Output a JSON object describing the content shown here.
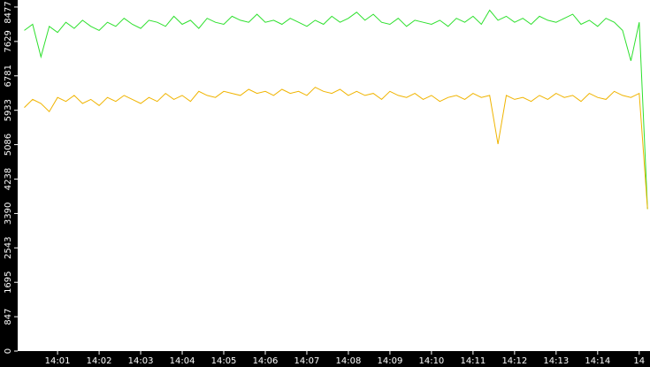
{
  "chart_data": {
    "type": "line",
    "x": [
      0.2,
      0.4,
      0.6,
      0.8,
      1.0,
      1.2,
      1.4,
      1.6,
      1.8,
      2.0,
      2.2,
      2.4,
      2.6,
      2.8,
      3.0,
      3.2,
      3.4,
      3.6,
      3.8,
      4.0,
      4.2,
      4.4,
      4.6,
      4.8,
      5.0,
      5.2,
      5.4,
      5.6,
      5.8,
      6.0,
      6.2,
      6.4,
      6.6,
      6.8,
      7.0,
      7.2,
      7.4,
      7.6,
      7.8,
      8.0,
      8.2,
      8.4,
      8.6,
      8.8,
      9.0,
      9.2,
      9.4,
      9.6,
      9.8,
      10.0,
      10.2,
      10.4,
      10.6,
      10.8,
      11.0,
      11.2,
      11.4,
      11.6,
      11.8,
      12.0,
      12.2,
      12.4,
      12.6,
      12.8,
      13.0,
      13.2,
      13.4,
      13.6,
      13.8,
      14.0,
      14.2,
      14.4,
      14.6,
      14.8,
      15.0,
      15.2
    ],
    "series": [
      {
        "color": "#2de02d",
        "values": [
          7900,
          8050,
          7250,
          8000,
          7850,
          8100,
          7950,
          8150,
          8000,
          7900,
          8100,
          8000,
          8200,
          8050,
          7950,
          8150,
          8100,
          8000,
          8250,
          8050,
          8150,
          7950,
          8200,
          8100,
          8050,
          8250,
          8150,
          8100,
          8300,
          8100,
          8150,
          8050,
          8200,
          8100,
          8000,
          8150,
          8050,
          8250,
          8100,
          8200,
          8350,
          8150,
          8300,
          8100,
          8050,
          8200,
          8000,
          8150,
          8100,
          8050,
          8150,
          8000,
          8200,
          8100,
          8250,
          8050,
          8400,
          8150,
          8250,
          8100,
          8200,
          8050,
          8250,
          8150,
          8100,
          8200,
          8300,
          8050,
          8150,
          8000,
          8200,
          8100,
          7900,
          7150,
          8100,
          3500
        ]
      },
      {
        "color": "#f0b400",
        "values": [
          6000,
          6200,
          6100,
          5900,
          6250,
          6150,
          6300,
          6100,
          6200,
          6050,
          6250,
          6150,
          6300,
          6200,
          6100,
          6250,
          6150,
          6350,
          6200,
          6300,
          6150,
          6400,
          6300,
          6250,
          6400,
          6350,
          6300,
          6450,
          6350,
          6400,
          6300,
          6450,
          6350,
          6400,
          6300,
          6500,
          6400,
          6350,
          6450,
          6300,
          6400,
          6300,
          6350,
          6200,
          6400,
          6300,
          6250,
          6350,
          6200,
          6300,
          6150,
          6250,
          6300,
          6200,
          6350,
          6250,
          6300,
          5100,
          6300,
          6200,
          6250,
          6150,
          6300,
          6200,
          6350,
          6250,
          6300,
          6150,
          6350,
          6250,
          6200,
          6400,
          6300,
          6250,
          6350,
          3500
        ]
      }
    ],
    "xlim": [
      0.04,
      15.26
    ],
    "xticks": [
      {
        "value": 1,
        "label": "14:01"
      },
      {
        "value": 2,
        "label": "14:02"
      },
      {
        "value": 3,
        "label": "14:03"
      },
      {
        "value": 4,
        "label": "14:04"
      },
      {
        "value": 5,
        "label": "14:05"
      },
      {
        "value": 6,
        "label": "14:06"
      },
      {
        "value": 7,
        "label": "14:07"
      },
      {
        "value": 8,
        "label": "14:08"
      },
      {
        "value": 9,
        "label": "14:09"
      },
      {
        "value": 10,
        "label": "14:10"
      },
      {
        "value": 11,
        "label": "14:11"
      },
      {
        "value": 12,
        "label": "14:12"
      },
      {
        "value": 13,
        "label": "14:13"
      },
      {
        "value": 14,
        "label": "14:14"
      },
      {
        "value": 15,
        "label": "14"
      }
    ],
    "ylim": [
      0,
      8650
    ],
    "yticks": [
      0,
      847,
      1695,
      2543,
      3390,
      4238,
      5086,
      5933,
      6781,
      7629,
      8477
    ]
  }
}
